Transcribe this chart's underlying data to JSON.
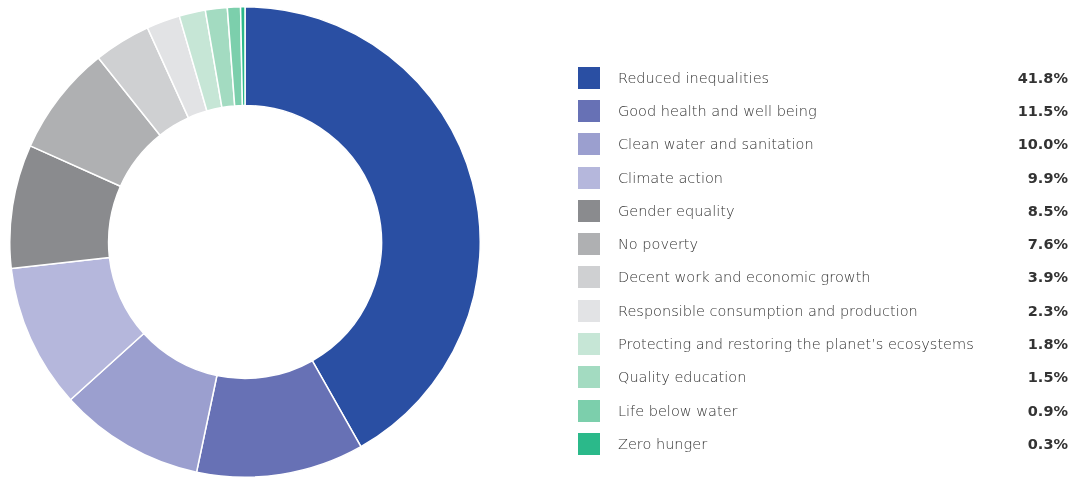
{
  "chart_data": {
    "type": "donut",
    "categories": [
      "Reduced inequalities",
      "Good health and well being",
      "Clean water and sanitation",
      "Climate action",
      "Gender equality",
      "No poverty",
      "Decent work and economic growth",
      "Responsible consumption and production",
      "Protecting and restoring the planet’s ecosystems",
      "Quality education",
      "Life below water",
      "Zero hunger"
    ],
    "values": [
      41.8,
      11.5,
      10.0,
      9.9,
      8.5,
      7.6,
      3.9,
      2.3,
      1.8,
      1.5,
      0.9,
      0.3
    ],
    "colors": [
      "#2a4fa3",
      "#6771b5",
      "#9b9fcf",
      "#b5b7dc",
      "#8a8b8e",
      "#afb0b2",
      "#cfd0d2",
      "#e2e3e5",
      "#c6e6d6",
      "#a3dbc1",
      "#7ccfac",
      "#2bb98a"
    ],
    "value_labels": [
      "41.8%",
      "11.5%",
      "10.0%",
      "9.9%",
      "8.5%",
      "7.6%",
      "3.9%",
      "2.3%",
      "1.8%",
      "1.5%",
      "0.9%",
      "0.3%"
    ],
    "legend": "right"
  }
}
